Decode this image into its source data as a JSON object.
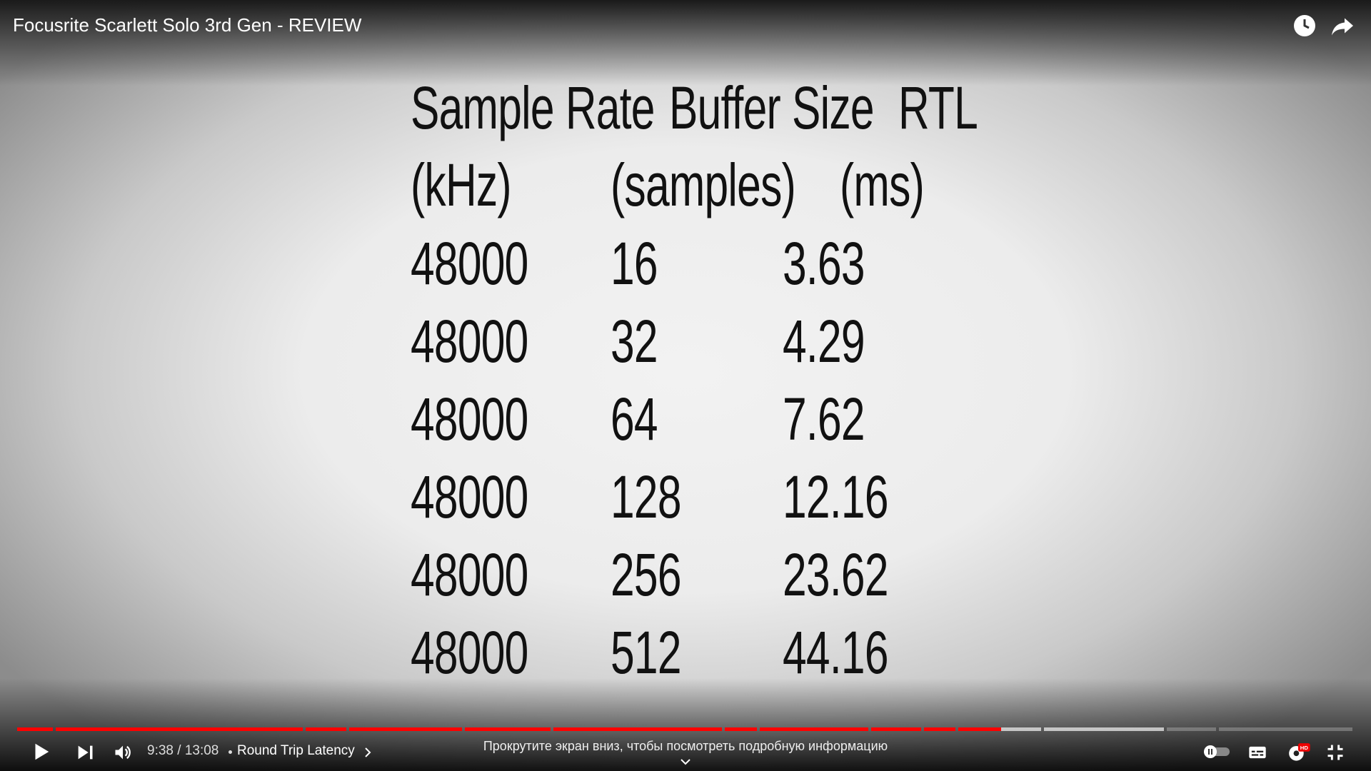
{
  "header": {
    "title": "Focusrite Scarlett Solo 3rd Gen - REVIEW"
  },
  "table": {
    "headers": [
      [
        "Sample Rate",
        "Buffer Size",
        "RTL"
      ],
      [
        "(kHz)",
        "(samples)",
        "(ms)"
      ]
    ],
    "rows": [
      [
        48000,
        16,
        3.63
      ],
      [
        48000,
        32,
        4.29
      ],
      [
        48000,
        64,
        7.62
      ],
      [
        48000,
        128,
        12.16
      ],
      [
        48000,
        256,
        23.62
      ],
      [
        48000,
        512,
        44.16
      ]
    ]
  },
  "controls": {
    "time": "9:38 / 13:08",
    "chapter": "Round Trip Latency",
    "hint": "Прокрутите экран вниз, чтобы посмотреть подробную информацию"
  }
}
